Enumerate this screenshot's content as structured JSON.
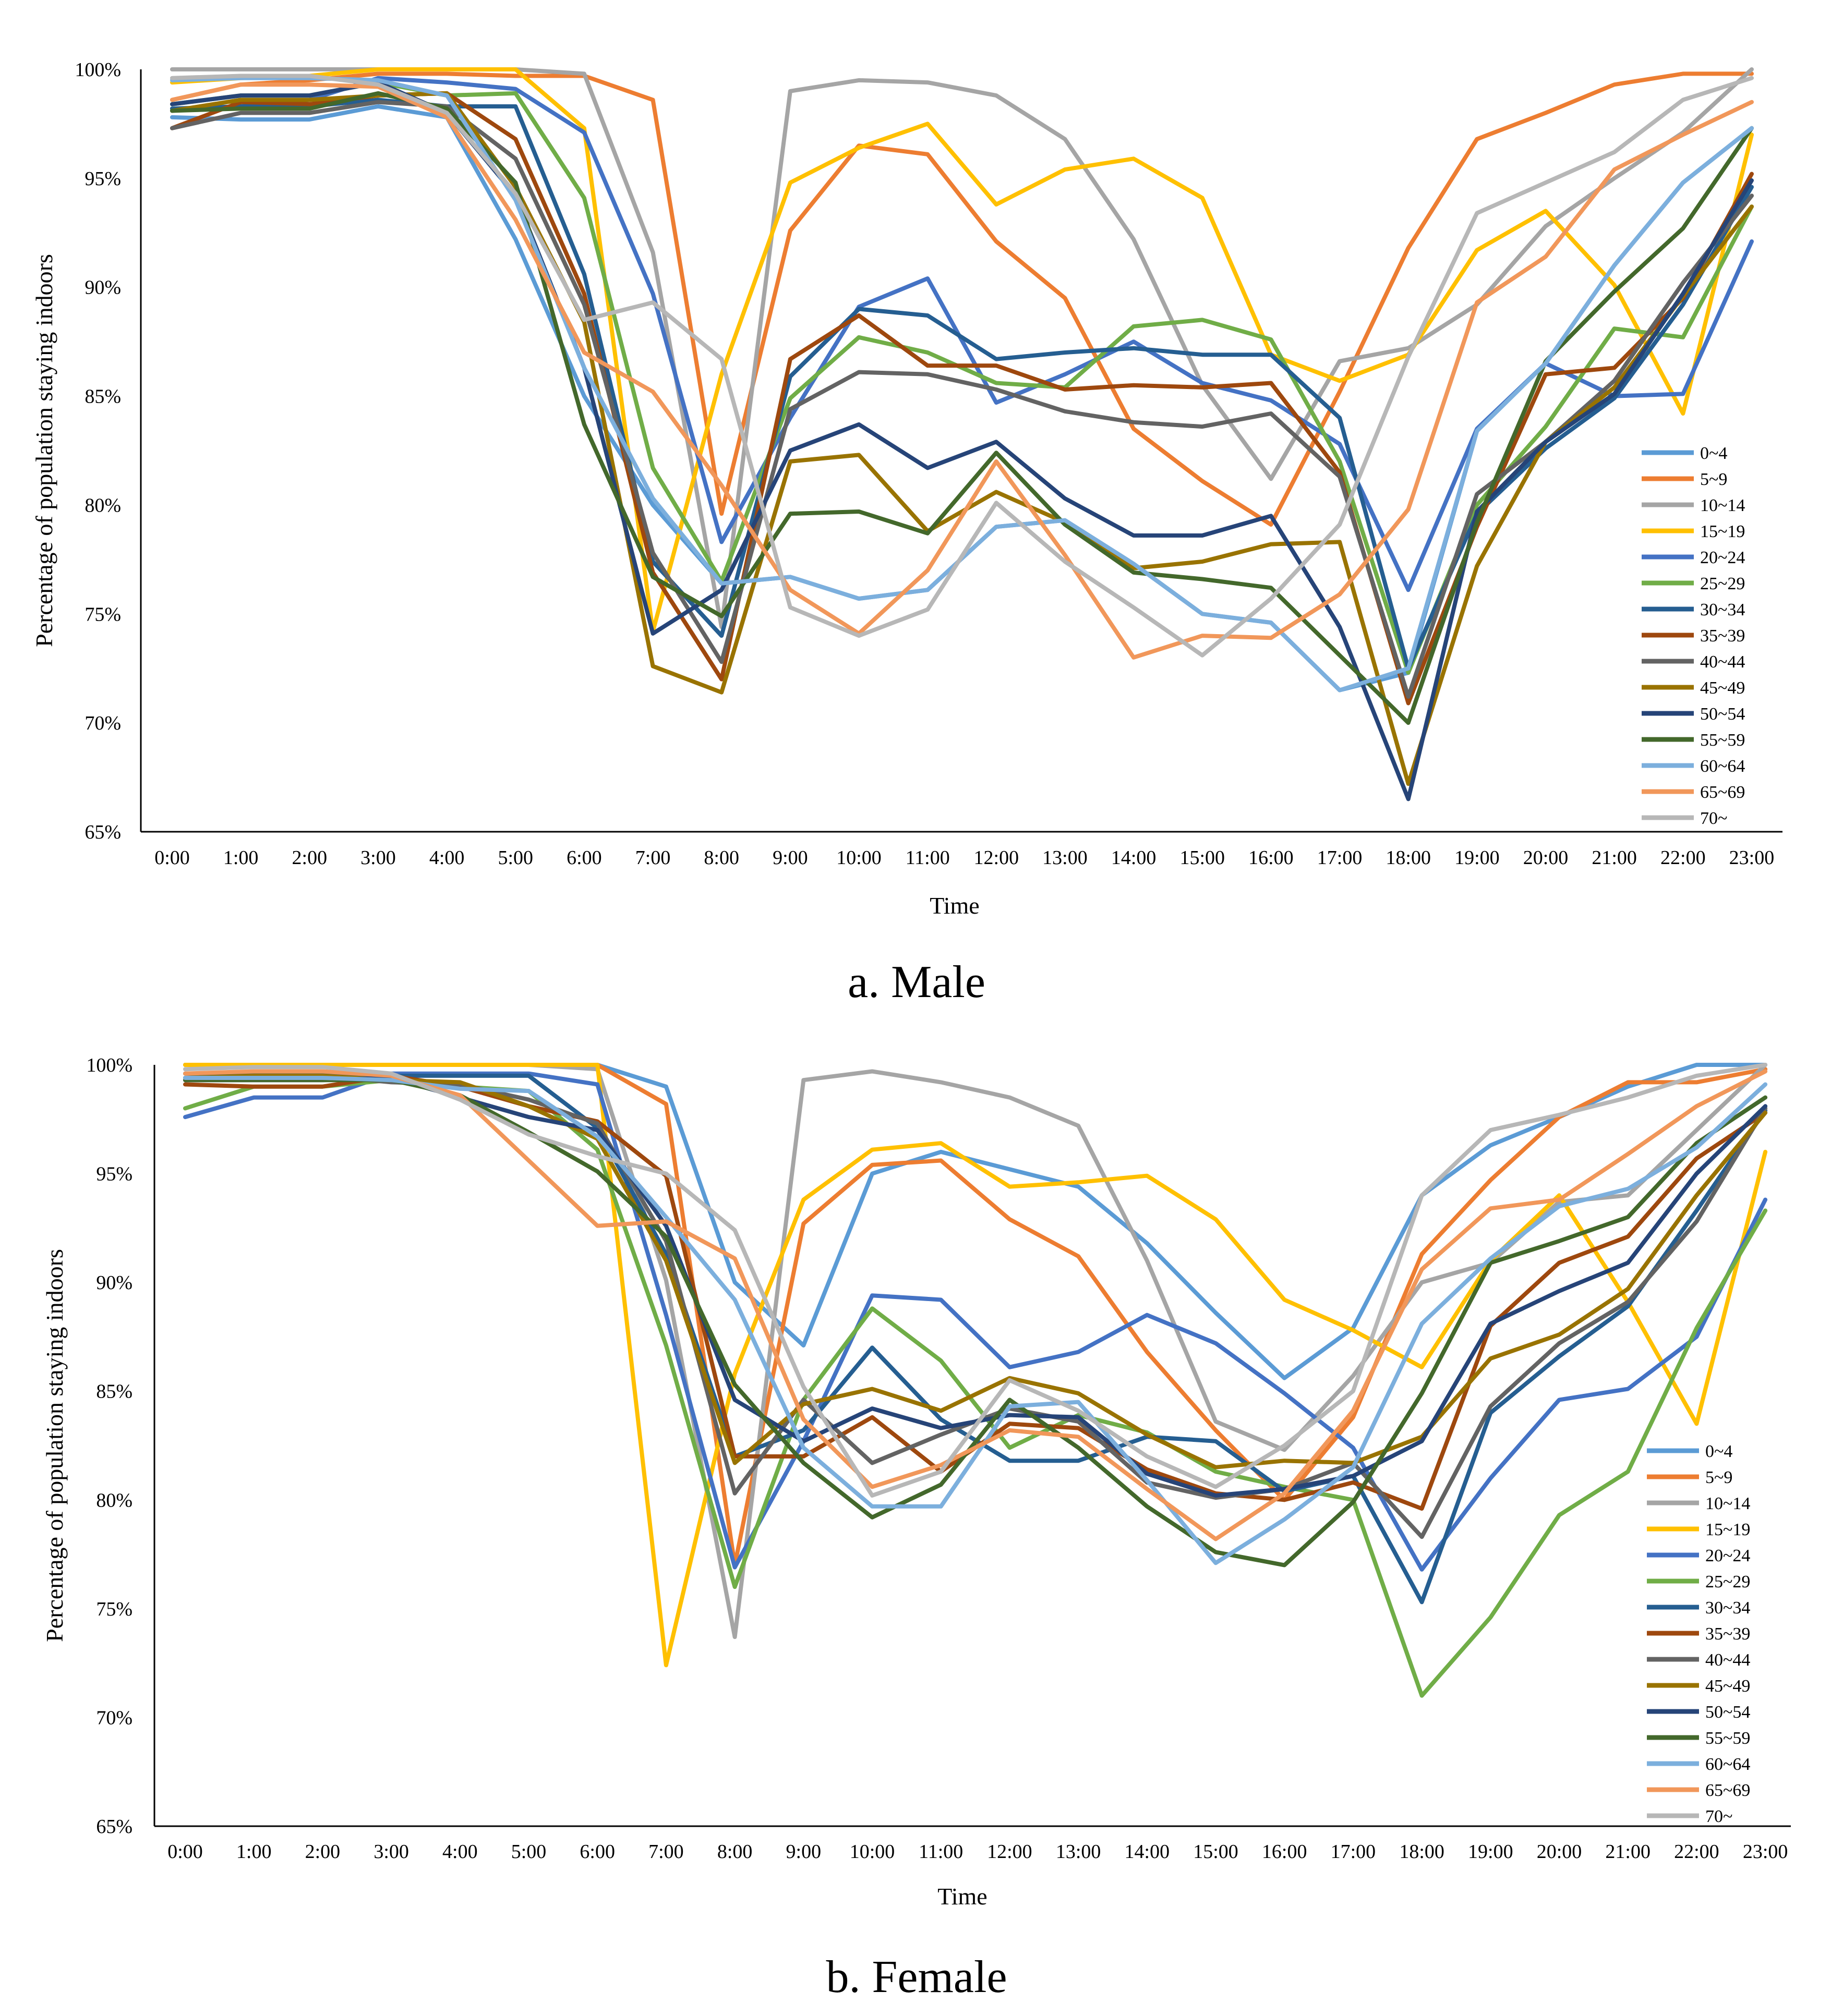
{
  "figure": {
    "ylabel": "Percentage of population staying indoors",
    "xlabel": "Time"
  },
  "legend_entries": [
    "0~4",
    "5~9",
    "10~14",
    "15~19",
    "20~24",
    "25~29",
    "30~34",
    "35~39",
    "40~44",
    "45~49",
    "50~54",
    "55~59",
    "60~64",
    "65~69",
    "70~"
  ],
  "colors": [
    "#5b9bd5",
    "#ed7d31",
    "#a5a5a5",
    "#ffc000",
    "#4472c4",
    "#70ad47",
    "#255e91",
    "#9e480e",
    "#636363",
    "#997300",
    "#264478",
    "#43682b",
    "#7cafdd",
    "#f1975a",
    "#b7b7b7"
  ],
  "chart_data": [
    {
      "type": "line",
      "title": "a. Male",
      "xlabel": "Time",
      "ylabel": "Percentage of population staying indoors",
      "ylim": [
        65,
        100
      ],
      "yticks": [
        "65%",
        "70%",
        "75%",
        "80%",
        "85%",
        "90%",
        "95%",
        "100%"
      ],
      "grid": false,
      "legend_position": "right",
      "categories": [
        "0:00",
        "1:00",
        "2:00",
        "3:00",
        "4:00",
        "5:00",
        "6:00",
        "7:00",
        "8:00",
        "9:00",
        "10:00",
        "11:00",
        "12:00",
        "13:00",
        "14:00",
        "15:00",
        "16:00",
        "17:00",
        "18:00",
        "19:00",
        "20:00",
        "21:00",
        "22:00",
        "23:00"
      ],
      "series": [
        {
          "name": "0~4",
          "values": [
            97.8,
            97.7,
            97.7,
            98.3,
            97.8,
            92.2,
            85.0,
            80.0,
            76.4,
            76.7,
            75.7,
            76.1,
            79.0,
            79.3,
            77.3,
            75.0,
            74.6,
            71.5,
            72.3,
            83.4,
            86.5,
            91.0,
            94.8,
            97.3
          ]
        },
        {
          "name": "5~9",
          "values": [
            98.6,
            99.3,
            99.5,
            99.8,
            99.8,
            99.7,
            99.7,
            98.6,
            79.6,
            92.6,
            96.5,
            96.1,
            92.1,
            89.5,
            83.5,
            81.1,
            79.1,
            85.2,
            91.8,
            96.8,
            98.0,
            99.3,
            99.8,
            99.8
          ]
        },
        {
          "name": "10~14",
          "values": [
            100,
            100,
            100,
            100,
            100,
            100,
            99.8,
            91.6,
            74.4,
            99.0,
            99.5,
            99.4,
            98.8,
            96.8,
            92.2,
            85.5,
            81.2,
            86.6,
            87.2,
            89.2,
            92.8,
            95.0,
            97.1,
            100
          ]
        },
        {
          "name": "15~19",
          "values": [
            99.4,
            99.6,
            99.7,
            100,
            100,
            100,
            97.3,
            74.2,
            86.0,
            94.8,
            96.4,
            97.5,
            93.8,
            95.4,
            95.9,
            94.1,
            86.9,
            85.7,
            86.9,
            91.7,
            93.5,
            90.1,
            84.2,
            97.0
          ]
        },
        {
          "name": "20~24",
          "values": [
            98.1,
            98.3,
            98.6,
            99.6,
            99.4,
            99.1,
            97.1,
            89.7,
            78.3,
            84.0,
            89.1,
            90.4,
            84.7,
            86.0,
            87.5,
            85.6,
            84.8,
            82.8,
            76.1,
            83.5,
            86.5,
            85.0,
            85.1,
            92.1
          ]
        },
        {
          "name": "25~29",
          "values": [
            98.4,
            98.8,
            98.8,
            99.4,
            98.8,
            98.9,
            94.1,
            81.7,
            76.5,
            84.9,
            87.7,
            87.0,
            85.6,
            85.4,
            88.2,
            88.5,
            87.6,
            82.0,
            72.3,
            80.0,
            83.6,
            88.1,
            87.7,
            93.7
          ]
        },
        {
          "name": "30~34",
          "values": [
            98.2,
            98.3,
            98.3,
            98.6,
            98.3,
            98.3,
            90.6,
            77.4,
            74.0,
            85.9,
            89.0,
            88.7,
            86.7,
            87.0,
            87.2,
            86.9,
            86.9,
            84.0,
            72.5,
            79.6,
            82.6,
            84.9,
            89.2,
            94.6
          ]
        },
        {
          "name": "35~39",
          "values": [
            97.3,
            98.5,
            98.4,
            98.8,
            98.9,
            96.8,
            89.7,
            76.9,
            72.0,
            86.7,
            88.7,
            86.4,
            86.4,
            85.3,
            85.5,
            85.4,
            85.6,
            81.5,
            70.9,
            79.0,
            86.0,
            86.3,
            89.5,
            95.2
          ]
        },
        {
          "name": "40~44",
          "values": [
            97.3,
            98.0,
            98.0,
            98.5,
            98.3,
            95.9,
            89.2,
            77.8,
            72.8,
            84.4,
            86.1,
            86.0,
            85.3,
            84.3,
            83.8,
            83.6,
            84.2,
            81.3,
            71.2,
            80.5,
            82.9,
            85.7,
            90.2,
            94.2
          ]
        },
        {
          "name": "45~49",
          "values": [
            98.1,
            98.6,
            98.6,
            98.8,
            98.9,
            94.6,
            88.4,
            72.6,
            71.4,
            82.0,
            82.3,
            78.8,
            80.6,
            79.2,
            77.1,
            77.4,
            78.2,
            78.3,
            67.2,
            77.2,
            82.9,
            85.4,
            89.6,
            93.7
          ]
        },
        {
          "name": "50~54",
          "values": [
            98.4,
            98.8,
            98.8,
            99.4,
            98.0,
            94.2,
            86.3,
            74.1,
            76.1,
            82.5,
            83.7,
            81.7,
            82.9,
            80.3,
            78.6,
            78.6,
            79.5,
            74.4,
            66.5,
            79.7,
            82.9,
            85.1,
            89.7,
            94.9
          ]
        },
        {
          "name": "55~59",
          "values": [
            98.1,
            98.2,
            98.2,
            98.9,
            98.2,
            94.8,
            83.7,
            76.7,
            74.9,
            79.6,
            79.7,
            78.7,
            82.4,
            79.1,
            76.9,
            76.6,
            76.2,
            73.1,
            70.0,
            79.2,
            86.6,
            89.8,
            92.7,
            97.3
          ]
        },
        {
          "name": "60~64",
          "values": [
            99.5,
            99.6,
            99.6,
            99.5,
            98.8,
            94.0,
            86.3,
            80.3,
            76.4,
            76.7,
            75.7,
            76.1,
            79.0,
            79.3,
            77.3,
            75.0,
            74.6,
            71.5,
            72.5,
            83.4,
            86.5,
            91.0,
            94.8,
            97.3
          ]
        },
        {
          "name": "65~69",
          "values": [
            98.6,
            99.3,
            99.3,
            99.2,
            97.8,
            93.1,
            87.0,
            85.2,
            80.9,
            76.1,
            74.1,
            77.0,
            82.0,
            77.7,
            73.0,
            74.0,
            73.9,
            75.9,
            79.8,
            89.3,
            91.4,
            95.4,
            97.0,
            98.5
          ]
        },
        {
          "name": "70~",
          "values": [
            99.6,
            99.7,
            99.7,
            99.3,
            98.0,
            94.3,
            88.5,
            89.3,
            86.7,
            75.3,
            74.0,
            75.2,
            80.1,
            77.4,
            75.3,
            73.1,
            75.7,
            79.1,
            86.8,
            93.4,
            94.8,
            96.2,
            98.6,
            99.6
          ]
        }
      ]
    },
    {
      "type": "line",
      "title": "b. Female",
      "xlabel": "Time",
      "ylabel": "Percentage of population staying indoors",
      "ylim": [
        65,
        100
      ],
      "yticks": [
        "65%",
        "70%",
        "75%",
        "80%",
        "85%",
        "90%",
        "95%",
        "100%"
      ],
      "grid": false,
      "legend_position": "right",
      "categories": [
        "0:00",
        "1:00",
        "2:00",
        "3:00",
        "4:00",
        "5:00",
        "6:00",
        "7:00",
        "8:00",
        "9:00",
        "10:00",
        "11:00",
        "12:00",
        "13:00",
        "14:00",
        "15:00",
        "16:00",
        "17:00",
        "18:00",
        "19:00",
        "20:00",
        "21:00",
        "22:00",
        "23:00"
      ],
      "series": [
        {
          "name": "0~4",
          "values": [
            100,
            100,
            100,
            100,
            100,
            100,
            100,
            99.0,
            90.0,
            87.1,
            95.0,
            96.0,
            95.2,
            94.4,
            91.8,
            88.6,
            85.6,
            87.9,
            94.0,
            96.3,
            97.6,
            99.0,
            100,
            100
          ]
        },
        {
          "name": "5~9",
          "values": [
            100,
            100,
            100,
            100,
            100,
            100,
            100,
            98.2,
            77.0,
            92.7,
            95.4,
            95.6,
            92.9,
            91.2,
            86.8,
            83.2,
            80.0,
            83.8,
            91.3,
            94.7,
            97.6,
            99.2,
            99.2,
            99.8
          ]
        },
        {
          "name": "10~14",
          "values": [
            100,
            100,
            100,
            100,
            100,
            100,
            99.8,
            90.1,
            73.7,
            99.3,
            99.7,
            99.2,
            98.5,
            97.2,
            91.0,
            83.6,
            82.3,
            85.7,
            90.0,
            90.9,
            93.7,
            94.0,
            97.0,
            100
          ]
        },
        {
          "name": "15~19",
          "values": [
            100,
            100,
            100,
            100,
            100,
            100,
            100,
            72.4,
            85.8,
            93.8,
            96.1,
            96.4,
            94.4,
            94.6,
            94.9,
            92.9,
            89.2,
            87.8,
            86.1,
            91.0,
            94.0,
            89.1,
            83.5,
            96.0
          ]
        },
        {
          "name": "20~24",
          "values": [
            97.6,
            98.5,
            98.5,
            99.6,
            99.6,
            99.6,
            99.1,
            88.5,
            76.9,
            82.7,
            89.4,
            89.2,
            86.1,
            86.8,
            88.5,
            87.2,
            84.9,
            82.4,
            76.8,
            81.0,
            84.6,
            85.1,
            87.5,
            93.8
          ]
        },
        {
          "name": "25~29",
          "values": [
            98.0,
            99.0,
            99.0,
            99.3,
            99.0,
            98.8,
            96.1,
            87.1,
            76.0,
            84.6,
            88.8,
            86.4,
            82.4,
            83.9,
            83.1,
            81.3,
            80.6,
            80.0,
            71.0,
            74.6,
            79.3,
            81.3,
            87.9,
            93.3
          ]
        },
        {
          "name": "30~34",
          "values": [
            99.6,
            99.6,
            99.6,
            99.5,
            99.5,
            99.5,
            97.1,
            91.3,
            82.0,
            83.2,
            87.0,
            83.7,
            81.8,
            81.8,
            82.9,
            82.7,
            80.4,
            81.1,
            75.3,
            84.0,
            86.6,
            88.9,
            93.3,
            97.9
          ]
        },
        {
          "name": "35~39",
          "values": [
            99.1,
            99.0,
            99.0,
            99.5,
            99.0,
            98.1,
            97.4,
            94.9,
            82.0,
            82.0,
            83.8,
            81.3,
            83.5,
            83.3,
            81.4,
            80.3,
            80.0,
            80.8,
            79.6,
            88.0,
            90.9,
            92.1,
            95.7,
            97.8
          ]
        },
        {
          "name": "40~44",
          "values": [
            99.4,
            99.5,
            99.5,
            99.2,
            99.1,
            98.4,
            97.3,
            91.9,
            80.3,
            84.6,
            81.7,
            83.0,
            84.2,
            83.6,
            80.8,
            80.1,
            80.5,
            81.7,
            78.3,
            84.3,
            87.2,
            89.1,
            92.8,
            98.0
          ]
        },
        {
          "name": "45~49",
          "values": [
            99.4,
            99.5,
            99.5,
            99.3,
            99.2,
            98.1,
            96.6,
            91.0,
            81.7,
            84.4,
            85.1,
            84.1,
            85.6,
            84.9,
            83.0,
            81.5,
            81.8,
            81.7,
            82.9,
            86.5,
            87.6,
            89.7,
            94.0,
            97.8
          ]
        },
        {
          "name": "50~54",
          "values": [
            99.3,
            99.3,
            99.3,
            99.4,
            98.5,
            97.6,
            97.0,
            92.6,
            84.6,
            82.7,
            84.2,
            83.3,
            83.9,
            83.8,
            81.2,
            80.2,
            80.5,
            81.1,
            82.7,
            88.1,
            89.6,
            90.9,
            95.0,
            98.1
          ]
        },
        {
          "name": "55~59",
          "values": [
            99.3,
            99.3,
            99.3,
            99.3,
            98.6,
            96.9,
            95.1,
            92.1,
            85.3,
            81.7,
            79.2,
            80.7,
            84.6,
            82.4,
            79.7,
            77.6,
            77.0,
            79.9,
            84.9,
            90.9,
            91.9,
            93.0,
            96.4,
            98.5
          ]
        },
        {
          "name": "60~64",
          "values": [
            99.4,
            99.4,
            99.4,
            99.3,
            98.9,
            98.8,
            96.7,
            93.0,
            89.2,
            82.4,
            79.7,
            79.7,
            84.3,
            84.5,
            80.9,
            77.1,
            79.1,
            81.5,
            88.1,
            91.1,
            93.5,
            94.3,
            96.2,
            99.1
          ]
        },
        {
          "name": "65~69",
          "values": [
            99.6,
            99.7,
            99.7,
            99.5,
            98.6,
            95.6,
            92.6,
            92.8,
            91.1,
            83.7,
            80.6,
            81.6,
            83.2,
            82.9,
            80.5,
            78.2,
            80.3,
            84.1,
            90.6,
            93.4,
            93.8,
            95.9,
            98.1,
            99.7
          ]
        },
        {
          "name": "70~",
          "values": [
            99.8,
            99.9,
            99.9,
            99.6,
            98.4,
            96.8,
            95.8,
            95.0,
            92.4,
            85.2,
            80.2,
            81.3,
            85.5,
            84.1,
            82.0,
            80.6,
            82.5,
            85.0,
            94.0,
            97.0,
            97.7,
            98.5,
            99.5,
            100
          ]
        }
      ]
    }
  ]
}
